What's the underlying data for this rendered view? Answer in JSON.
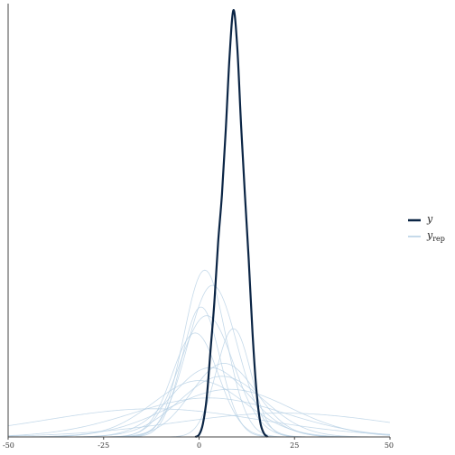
{
  "chart_data": {
    "type": "line",
    "title": "",
    "xlabel": "",
    "ylabel": "",
    "xlim": [
      -50,
      50
    ],
    "ylim": [
      0,
      1
    ],
    "x_ticks": [
      -50,
      -25,
      0,
      25,
      50
    ],
    "x_tick_labels": [
      "-50",
      "-25",
      "0",
      "25",
      "50"
    ],
    "grid": false,
    "legend_position": "right",
    "legend": [
      {
        "label": "y",
        "subscript": "",
        "color": "#0b2545"
      },
      {
        "label": "y",
        "subscript": "rep",
        "color": "#b3cde3"
      }
    ],
    "colors": {
      "y": "#0b2545",
      "yrep": "#b3cde3",
      "axis": "#444444"
    },
    "series": [
      {
        "name": "y",
        "role": "observed",
        "points": [
          [
            -1,
            0
          ],
          [
            0,
            0.005
          ],
          [
            1,
            0.03
          ],
          [
            2,
            0.09
          ],
          [
            3,
            0.2
          ],
          [
            4,
            0.31
          ],
          [
            5,
            0.45
          ],
          [
            6,
            0.56
          ],
          [
            7,
            0.71
          ],
          [
            8,
            0.88
          ],
          [
            9,
            0.985
          ],
          [
            10,
            0.9
          ],
          [
            11,
            0.72
          ],
          [
            12,
            0.56
          ],
          [
            13,
            0.41
          ],
          [
            14,
            0.24
          ],
          [
            15,
            0.11
          ],
          [
            16,
            0.035
          ],
          [
            17,
            0.008
          ],
          [
            18,
            0
          ]
        ]
      }
    ],
    "replicates": [
      {
        "mean": 1.5,
        "sd": 5.5,
        "peak": 0.385
      },
      {
        "mean": 3.5,
        "sd": 6.5,
        "peak": 0.35
      },
      {
        "mean": 0.5,
        "sd": 5,
        "peak": 0.3
      },
      {
        "mean": -1,
        "sd": 6,
        "peak": 0.24
      },
      {
        "mean": 2,
        "sd": 7,
        "peak": 0.28
      },
      {
        "mean": 9,
        "sd": 4.5,
        "peak": 0.25
      },
      {
        "mean": 6.5,
        "sd": 8.5,
        "peak": 0.17
      },
      {
        "mean": 3,
        "sd": 10,
        "peak": 0.16
      },
      {
        "mean": 0,
        "sd": 12,
        "peak": 0.13
      },
      {
        "mean": 6,
        "sd": 11,
        "peak": 0.14
      },
      {
        "mean": 2.5,
        "sd": 20,
        "peak": 0.09
      },
      {
        "mean": -12,
        "sd": 28,
        "peak": 0.065
      },
      {
        "mean": 22,
        "sd": 28,
        "peak": 0.055
      },
      {
        "mean": 8,
        "sd": 16,
        "peak": 0.11
      }
    ]
  }
}
